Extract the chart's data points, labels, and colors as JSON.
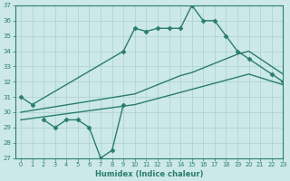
{
  "line1_x": [
    0,
    1,
    9,
    10,
    11,
    12,
    13,
    14,
    15,
    16,
    17,
    18,
    19,
    20,
    22,
    23
  ],
  "line1_y": [
    31.0,
    30.5,
    34.0,
    35.5,
    35.3,
    35.5,
    35.5,
    35.5,
    37.0,
    36.0,
    36.0,
    35.0,
    34.0,
    33.5,
    32.5,
    32.0
  ],
  "line2_x": [
    0,
    10,
    11,
    12,
    13,
    14,
    15,
    16,
    17,
    18,
    19,
    20,
    23
  ],
  "line2_y": [
    30.0,
    31.2,
    31.5,
    31.8,
    32.1,
    32.4,
    32.6,
    32.9,
    33.2,
    33.5,
    33.8,
    34.0,
    32.5
  ],
  "line3_x": [
    0,
    10,
    11,
    12,
    13,
    14,
    15,
    16,
    17,
    18,
    19,
    20,
    23
  ],
  "line3_y": [
    29.5,
    30.5,
    30.7,
    30.9,
    31.1,
    31.3,
    31.5,
    31.7,
    31.9,
    32.1,
    32.3,
    32.5,
    31.8
  ],
  "line4_x": [
    2,
    3,
    4,
    5,
    6,
    7,
    8,
    9
  ],
  "line4_y": [
    29.5,
    29.0,
    29.5,
    29.5,
    29.0,
    27.0,
    27.5,
    30.5
  ],
  "ylim": [
    27,
    37
  ],
  "xlim": [
    -0.5,
    23
  ],
  "yticks": [
    27,
    28,
    29,
    30,
    31,
    32,
    33,
    34,
    35,
    36,
    37
  ],
  "xticks": [
    0,
    1,
    2,
    3,
    4,
    5,
    6,
    7,
    8,
    9,
    10,
    11,
    12,
    13,
    14,
    15,
    16,
    17,
    18,
    19,
    20,
    21,
    22,
    23
  ],
  "xlabel": "Humidex (Indice chaleur)",
  "line_color": "#2a7d6e",
  "bg_color": "#cce8e8",
  "grid_color": "#aad0d0",
  "markersize": 2.5
}
